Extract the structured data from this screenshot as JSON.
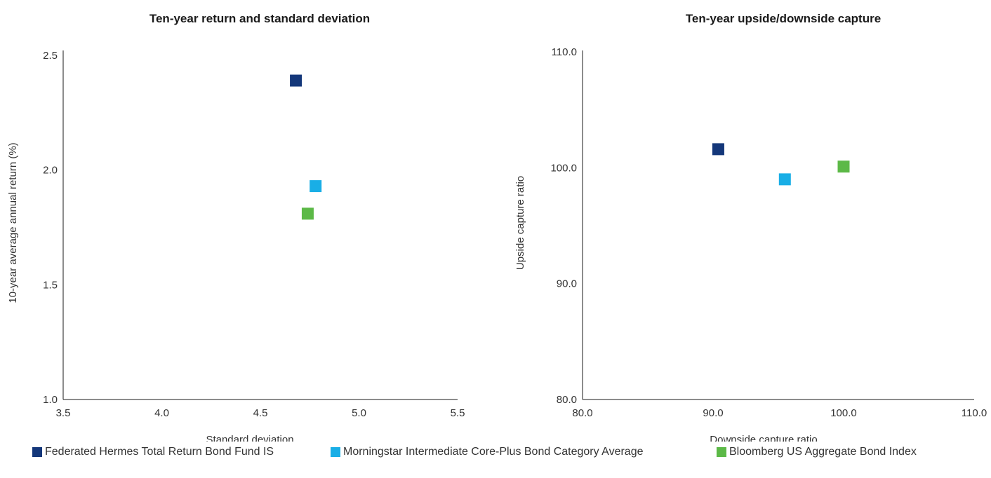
{
  "chart_data": [
    {
      "type": "scatter",
      "title": "Ten-year return and standard deviation",
      "xlabel": "Standard deviation",
      "ylabel": "10-year average annual return (%)",
      "xlim": [
        3.5,
        5.5
      ],
      "ylim": [
        1.0,
        2.5
      ],
      "xticks": [
        "3.5",
        "4.0",
        "4.5",
        "5.0",
        "5.5"
      ],
      "yticks": [
        "1.0",
        "1.5",
        "2.0",
        "2.5"
      ],
      "grid": false,
      "series": [
        {
          "name": "Federated Hermes Total Return Bond Fund IS",
          "color": "#14377a",
          "points": [
            {
              "x": 4.68,
              "y": 2.39
            }
          ]
        },
        {
          "name": "Morningstar Intermediate Core-Plus Bond Category Average",
          "color": "#19aee6",
          "points": [
            {
              "x": 4.78,
              "y": 1.93
            }
          ]
        },
        {
          "name": "Bloomberg US Aggregate Bond Index",
          "color": "#5cb947",
          "points": [
            {
              "x": 4.74,
              "y": 1.81
            }
          ]
        }
      ]
    },
    {
      "type": "scatter",
      "title": "Ten-year upside/downside capture",
      "xlabel": "Downside capture ratio",
      "ylabel": "Upside capture ratio",
      "xlim": [
        80.0,
        110.0
      ],
      "ylim": [
        80.0,
        110.0
      ],
      "xticks": [
        "80.0",
        "90.0",
        "100.0",
        "110.0"
      ],
      "yticks": [
        "80.0",
        "90.0",
        "100.0",
        "110.0"
      ],
      "grid": false,
      "series": [
        {
          "name": "Federated Hermes Total Return Bond Fund IS",
          "color": "#14377a",
          "points": [
            {
              "x": 90.4,
              "y": 101.6
            }
          ]
        },
        {
          "name": "Morningstar Intermediate Core-Plus Bond Category Average",
          "color": "#19aee6",
          "points": [
            {
              "x": 95.5,
              "y": 99.0
            }
          ]
        },
        {
          "name": "Bloomberg US Aggregate Bond Index",
          "color": "#5cb947",
          "points": [
            {
              "x": 100.0,
              "y": 100.1
            }
          ]
        }
      ]
    }
  ],
  "legend": {
    "placement": "bottom",
    "items": [
      {
        "label": "Federated Hermes Total Return Bond Fund IS",
        "color": "#14377a"
      },
      {
        "label": "Morningstar Intermediate Core-Plus Bond Category Average",
        "color": "#19aee6"
      },
      {
        "label": "Bloomberg US Aggregate Bond Index",
        "color": "#5cb947"
      }
    ]
  }
}
